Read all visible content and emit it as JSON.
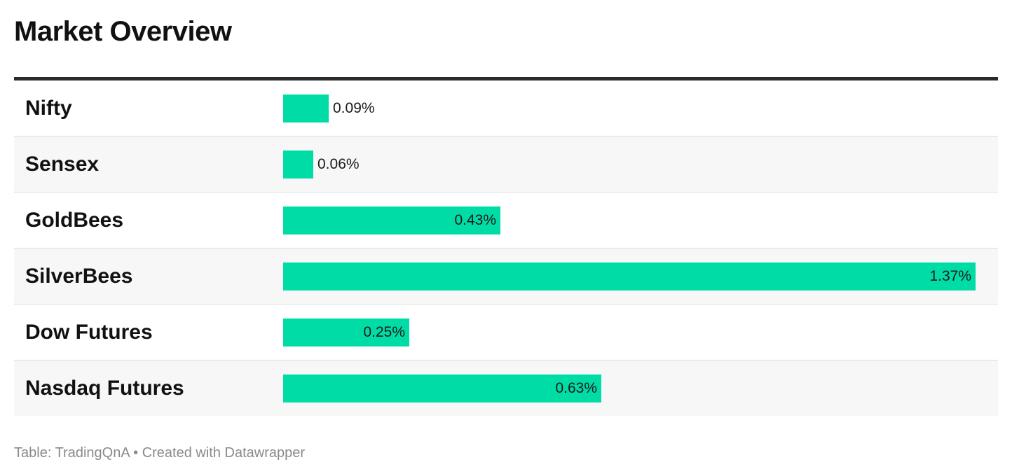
{
  "title": "Market Overview",
  "footer": {
    "source": "Table: TradingQnA",
    "separator": "•",
    "credit": "Created with Datawrapper"
  },
  "colors": {
    "bar": "#00dca6",
    "header_rule": "#2b2b2b",
    "row_alt": "#f7f7f7"
  },
  "chart_data": {
    "type": "bar",
    "title": "Market Overview",
    "orientation": "horizontal",
    "categories": [
      "Nifty",
      "Sensex",
      "GoldBees",
      "SilverBees",
      "Dow Futures",
      "Nasdaq Futures"
    ],
    "values": [
      0.09,
      0.06,
      0.43,
      1.37,
      0.25,
      0.63
    ],
    "labels": [
      "0.09%",
      "0.06%",
      "0.43%",
      "1.37%",
      "0.25%",
      "0.63%"
    ],
    "unit": "%",
    "xlim": [
      0,
      1.37
    ],
    "grid": false,
    "legend": "none"
  }
}
